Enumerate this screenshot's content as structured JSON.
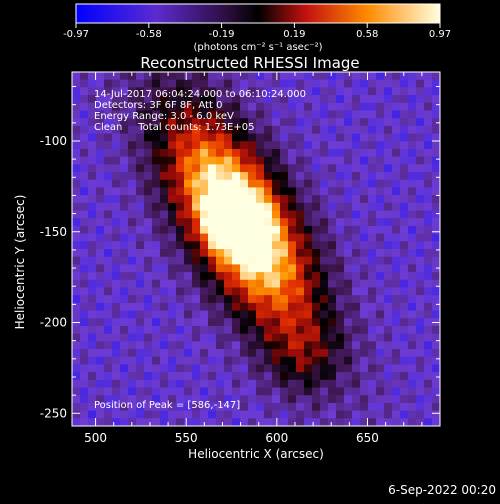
{
  "colorbar": {
    "tick_labels": [
      "-0.97",
      "-0.58",
      "-0.19",
      "0.19",
      "0.58",
      "0.97"
    ],
    "units_label": "(photons cm⁻² s⁻¹ asec⁻²)"
  },
  "plot": {
    "title": "Reconstructed RHESSI Image",
    "annotations": [
      "14-Jul-2017 06:04:24.000 to 06:10:24.000",
      "Detectors: 3F 6F 8F, Att 0",
      "Energy Range: 3.0 - 6.0 keV",
      "Clean     Total counts: 1.73E+05"
    ],
    "peak_text": "Position of Peak = [586,-147]",
    "xlabel": "Heliocentric X (arcsec)",
    "ylabel": "Heliocentric Y (arcsec)",
    "x_ticks": [
      "500",
      "550",
      "600",
      "650"
    ],
    "y_ticks": [
      "-100",
      "-150",
      "-200",
      "-250"
    ]
  },
  "footer": {
    "timestamp": "6-Sep-2022 00:20"
  }
}
